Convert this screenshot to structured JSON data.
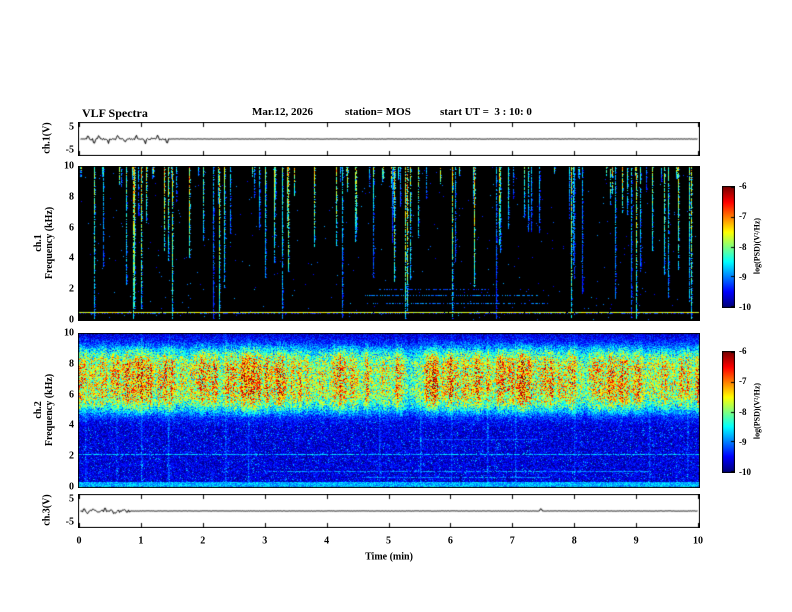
{
  "header": {
    "title": "VLF Spectra",
    "date": "Mar.12, 2026",
    "station": "station= MOS",
    "start_ut": "start UT =  3 : 10: 0"
  },
  "xaxis": {
    "label": "Time (min)",
    "ticks": [
      "0",
      "1",
      "2",
      "3",
      "4",
      "5",
      "6",
      "7",
      "8",
      "9",
      "10"
    ],
    "xlim": [
      0,
      10
    ]
  },
  "colorbar": {
    "label": "log(PSD)(V²/Hz)",
    "ticks": [
      "-6",
      "-7",
      "-8",
      "-9",
      "-10"
    ],
    "clim": [
      -6,
      -10
    ],
    "colormap": "rainbow"
  },
  "chart_data": [
    {
      "type": "line",
      "panel": "ch1-voltage",
      "ylabel": "ch.1(V)",
      "ylim": [
        -5,
        5
      ],
      "yticks": [
        "5",
        "-5"
      ],
      "xlim": [
        0,
        10
      ],
      "description": "Near-zero voltage trace with impulsive spikes during the first 1.5 minutes",
      "spikes_min": [
        0.12,
        0.22,
        0.3,
        0.45,
        0.6,
        0.72,
        0.9,
        1.05,
        1.25,
        1.4
      ],
      "spike_amplitude_v": 1.6,
      "noise_bursts": [
        {
          "t0": 0.08,
          "t1": 1.45,
          "amplitude_v": 0.35
        }
      ]
    },
    {
      "type": "heatmap",
      "panel": "ch1-spectrogram",
      "ylabel_lines": [
        "ch.1",
        "Frequency (kHz)"
      ],
      "ylim": [
        0,
        10
      ],
      "yticks": [
        "0",
        "2",
        "4",
        "6",
        "8",
        "10"
      ],
      "xlim": [
        0,
        10
      ],
      "clim_log_psd": [
        -10,
        -6
      ],
      "background_log_psd": -10,
      "content": {
        "impulsive_streaks": {
          "count": 115,
          "from_khz": 10,
          "min_length_khz": 0.6,
          "max_length_khz": 9.5,
          "log_psd_range": [
            -8.6,
            -6.2
          ],
          "full_height_fraction": 0.06
        },
        "carrier_line": {
          "freq_khz": 0.45,
          "log_psd": -7.6,
          "x0_min": 0,
          "x1_min": 10
        },
        "faint_lines": [
          {
            "freq_khz": 1.05,
            "x0_min": 4.6,
            "x1_min": 7.6,
            "log_psd": -9.0
          },
          {
            "freq_khz": 1.55,
            "x0_min": 4.6,
            "x1_min": 7.4,
            "log_psd": -9.0
          },
          {
            "freq_khz": 2.0,
            "x0_min": 4.8,
            "x1_min": 6.6,
            "log_psd": -9.2
          }
        ],
        "speckle_density": 0.004
      }
    },
    {
      "type": "heatmap",
      "panel": "ch2-spectrogram",
      "ylabel_lines": [
        "ch.2",
        "Frequency (kHz)"
      ],
      "ylim": [
        0,
        10
      ],
      "yticks": [
        "0",
        "2",
        "4",
        "6",
        "8",
        "10"
      ],
      "xlim": [
        0,
        10
      ],
      "clim_log_psd": [
        -10,
        -6
      ],
      "content": {
        "background_log_psd_range": [
          -10,
          -9.3
        ],
        "noise_band": {
          "f0_khz": 4.8,
          "f1_khz": 9.3,
          "peak_khz": 7.0,
          "log_psd_range": [
            -8.8,
            -6.6
          ]
        },
        "low_freq_speckle": {
          "below_khz": 4.3,
          "density": 0.1,
          "log_psd_range": [
            -9.6,
            -8.7
          ]
        },
        "vertical_streaks": {
          "count": 14
        },
        "lines": [
          {
            "freq_khz": 2.1,
            "x0_min": 0,
            "x1_min": 10,
            "log_psd": -8.8
          },
          {
            "freq_khz": 1.0,
            "x0_min": 3.0,
            "x1_min": 9.2,
            "log_psd": -9.0
          },
          {
            "freq_khz": 3.1,
            "x0_min": 5.4,
            "x1_min": 7.4,
            "log_psd": -9.2
          },
          {
            "freq_khz": 0.6,
            "x0_min": 4.6,
            "x1_min": 7.6,
            "log_psd": -9.0
          }
        ],
        "bottom_edge": {
          "below_khz": 0.3,
          "log_psd": -8.6
        }
      }
    },
    {
      "type": "line",
      "panel": "ch3-voltage",
      "ylabel": "ch.3(V)",
      "ylim": [
        -5,
        5
      ],
      "yticks": [
        "5",
        "-5"
      ],
      "xlim": [
        0,
        10
      ],
      "description": "Near-zero voltage trace with a small noise burst in the first 0.8 minutes and an isolated spike near 7.5 min",
      "spikes_min": [
        0.06,
        0.12,
        0.2,
        0.3,
        0.4,
        0.55,
        7.45
      ],
      "spike_amplitude_v": 1.1,
      "noise_bursts": [
        {
          "t0": 0.02,
          "t1": 0.8,
          "amplitude_v": 0.5
        }
      ]
    }
  ]
}
